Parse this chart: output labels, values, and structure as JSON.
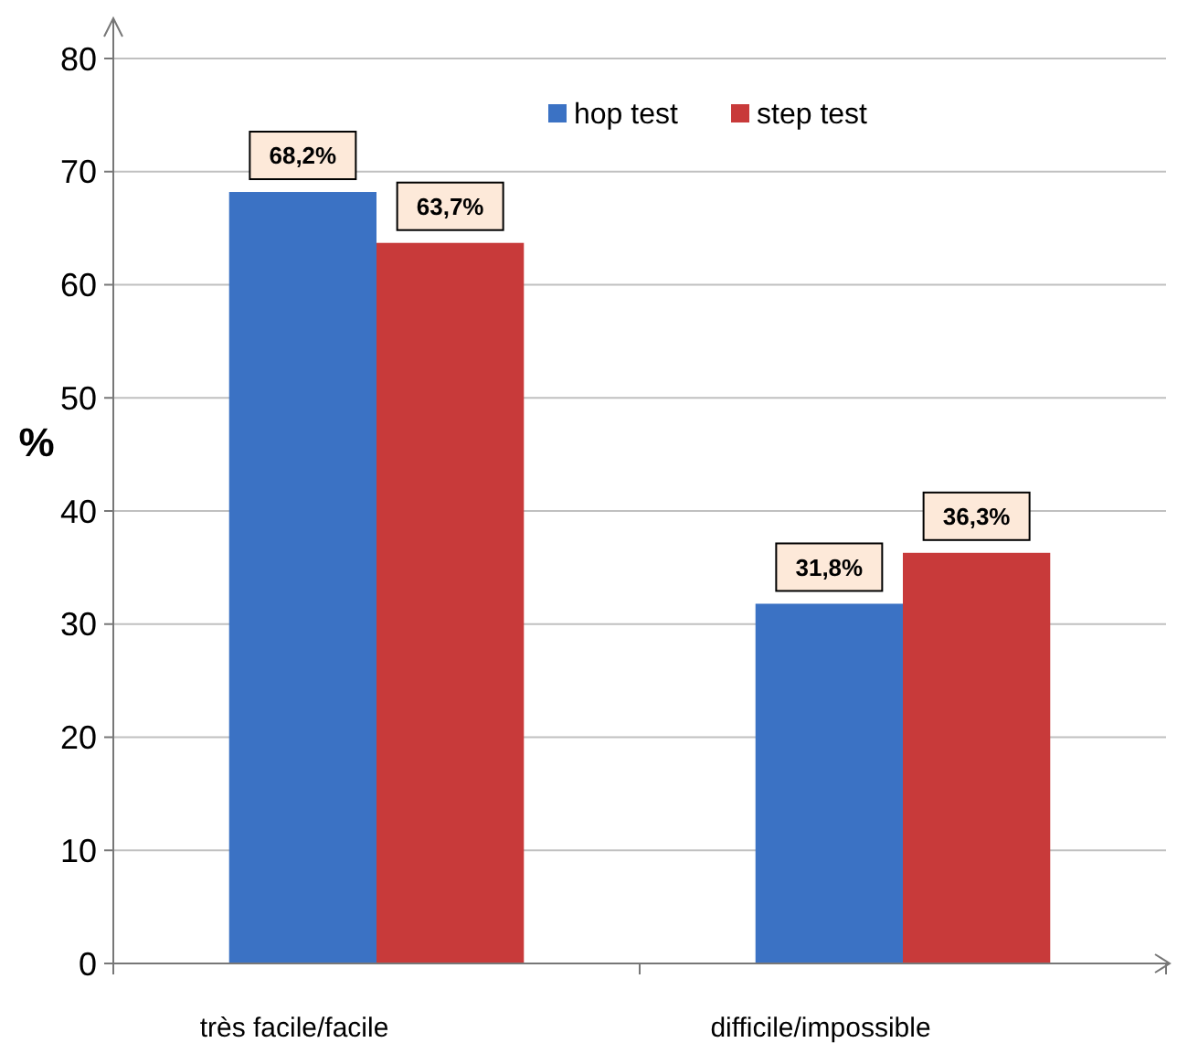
{
  "chart_data": {
    "type": "bar",
    "ylabel": "%",
    "categories": [
      "très facile/facile",
      "difficile/impossible"
    ],
    "series": [
      {
        "name": "hop test",
        "color": "#3b72c4",
        "values": [
          68.2,
          31.8
        ],
        "value_labels": [
          "68,2%",
          "31,8%"
        ]
      },
      {
        "name": "step test",
        "color": "#c83a3a",
        "values": [
          63.7,
          36.3
        ],
        "value_labels": [
          "63,7%",
          "36,3%"
        ]
      }
    ],
    "ylim": [
      0,
      80
    ],
    "yticks": [
      0,
      10,
      20,
      30,
      40,
      50,
      60,
      70,
      80
    ],
    "grid": "y",
    "legend": "top"
  }
}
